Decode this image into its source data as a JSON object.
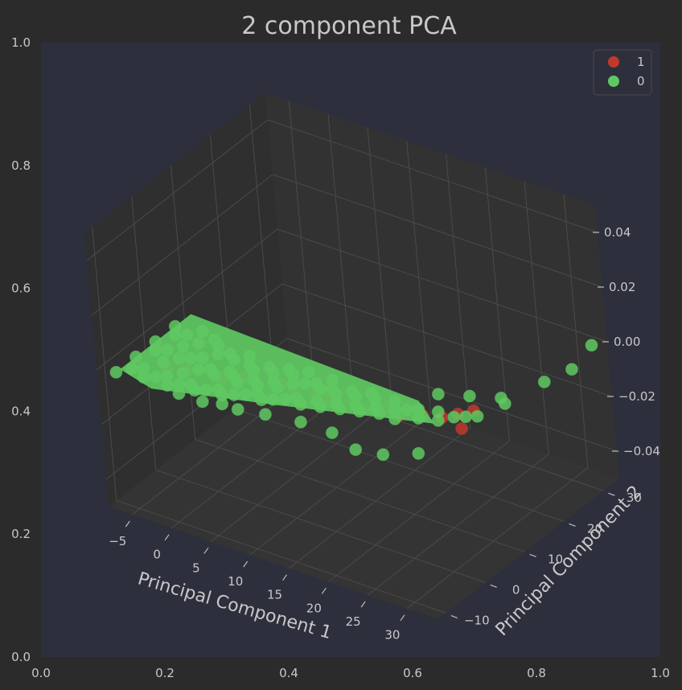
{
  "chart_data": {
    "type": "scatter",
    "title": "2 component PCA",
    "projection": "3d",
    "xlabel": "Principal Component 1",
    "ylabel": "Principal Component 2",
    "zlabel": "",
    "x_ticks": [
      "−5",
      "0",
      "5",
      "10",
      "15",
      "20",
      "25",
      "30"
    ],
    "y_ticks": [
      "−10",
      "0",
      "10",
      "20",
      "30"
    ],
    "z_ticks": [
      "−0.04",
      "−0.02",
      "0.00",
      "0.02",
      "0.04"
    ],
    "outer_axes": {
      "x_ticks": [
        "0.0",
        "0.2",
        "0.4",
        "0.6",
        "0.8",
        "1.0"
      ],
      "y_ticks": [
        "0.0",
        "0.2",
        "0.4",
        "0.6",
        "0.8",
        "1.0"
      ],
      "xlim": [
        0,
        1
      ],
      "ylim": [
        0,
        1
      ]
    },
    "xlim": [
      -8,
      34
    ],
    "ylim": [
      -12,
      34
    ],
    "zlim": [
      -0.05,
      0.05
    ],
    "legend": {
      "placement": "top-right"
    },
    "series": [
      {
        "name": "1",
        "color": "#c0392b",
        "points": [
          [
            -2,
            -6,
            0
          ],
          [
            0,
            -5,
            0
          ],
          [
            2,
            -3,
            0
          ],
          [
            4,
            -4,
            0
          ],
          [
            6,
            -2,
            0
          ],
          [
            8,
            -3,
            0
          ],
          [
            10,
            -1,
            0
          ],
          [
            12,
            -2,
            0
          ],
          [
            14,
            0,
            0
          ],
          [
            16,
            -1,
            0
          ],
          [
            18,
            1,
            0
          ],
          [
            20,
            0,
            0
          ],
          [
            22,
            2,
            0
          ],
          [
            24,
            1,
            0
          ],
          [
            26,
            3,
            0
          ],
          [
            28,
            4,
            0
          ],
          [
            30,
            8,
            0
          ],
          [
            29,
            6,
            0
          ],
          [
            31,
            3,
            0
          ]
        ]
      },
      {
        "name": "0",
        "color": "#5ec962",
        "points": [
          [
            -6,
            -11,
            0
          ],
          [
            -6,
            -6,
            0
          ],
          [
            -6,
            -1,
            0
          ],
          [
            -6,
            4,
            0
          ],
          [
            -5,
            -9,
            0
          ],
          [
            -5,
            -3,
            0
          ],
          [
            -5,
            2,
            0
          ],
          [
            -4,
            -8,
            0
          ],
          [
            -4,
            -2,
            0
          ],
          [
            -4,
            3,
            0
          ],
          [
            -3,
            -10,
            0
          ],
          [
            -3,
            -5,
            0
          ],
          [
            -3,
            0,
            0
          ],
          [
            -3,
            5,
            0
          ],
          [
            -2,
            -9,
            0
          ],
          [
            -2,
            -3,
            0
          ],
          [
            -2,
            2,
            0
          ],
          [
            -1,
            -8,
            0
          ],
          [
            -1,
            -2,
            0
          ],
          [
            -1,
            4,
            0
          ],
          [
            0,
            -10,
            0
          ],
          [
            0,
            -6,
            0
          ],
          [
            0,
            -1,
            0
          ],
          [
            0,
            3,
            0
          ],
          [
            1,
            -9,
            0
          ],
          [
            1,
            -4,
            0
          ],
          [
            1,
            1,
            0
          ],
          [
            2,
            -8,
            0
          ],
          [
            2,
            -3,
            0
          ],
          [
            2,
            2,
            0
          ],
          [
            3,
            -9,
            0
          ],
          [
            3,
            -4,
            0
          ],
          [
            3,
            1,
            0
          ],
          [
            4,
            -8,
            0
          ],
          [
            4,
            -2,
            0
          ],
          [
            4,
            3,
            0
          ],
          [
            5,
            -7,
            0
          ],
          [
            5,
            -3,
            0
          ],
          [
            5,
            1,
            0
          ],
          [
            6,
            -8,
            0
          ],
          [
            6,
            -4,
            0
          ],
          [
            6,
            0,
            0
          ],
          [
            7,
            -7,
            0
          ],
          [
            7,
            -2,
            0
          ],
          [
            7,
            2,
            0
          ],
          [
            8,
            -6,
            0
          ],
          [
            8,
            -3,
            0
          ],
          [
            8,
            1,
            0
          ],
          [
            9,
            -5,
            0
          ],
          [
            9,
            -1,
            0
          ],
          [
            9,
            3,
            0
          ],
          [
            10,
            -6,
            0
          ],
          [
            10,
            -2,
            0
          ],
          [
            10,
            2,
            0
          ],
          [
            11,
            -5,
            0
          ],
          [
            11,
            0,
            0
          ],
          [
            11,
            4,
            0
          ],
          [
            12,
            -4,
            0
          ],
          [
            12,
            1,
            0
          ],
          [
            13,
            -3,
            0
          ],
          [
            13,
            2,
            0
          ],
          [
            14,
            -4,
            0
          ],
          [
            14,
            1,
            0
          ],
          [
            14,
            4,
            0
          ],
          [
            15,
            -2,
            0
          ],
          [
            15,
            2,
            0
          ],
          [
            16,
            -3,
            0
          ],
          [
            16,
            1,
            0
          ],
          [
            17,
            -1,
            0
          ],
          [
            17,
            3,
            0
          ],
          [
            18,
            -2,
            0
          ],
          [
            18,
            2,
            0
          ],
          [
            19,
            0,
            0
          ],
          [
            19,
            4,
            0
          ],
          [
            20,
            -1,
            0
          ],
          [
            20,
            3,
            0
          ],
          [
            21,
            1,
            0
          ],
          [
            22,
            0,
            0
          ],
          [
            22,
            4,
            0
          ],
          [
            23,
            2,
            0
          ],
          [
            24,
            3,
            0
          ],
          [
            24,
            0,
            0
          ],
          [
            25,
            4,
            0
          ],
          [
            26,
            2,
            0
          ],
          [
            27,
            5,
            0
          ],
          [
            28,
            3,
            0
          ],
          [
            29,
            5,
            0
          ],
          [
            30,
            6,
            0
          ],
          [
            31,
            7,
            0
          ],
          [
            2,
            -11,
            0
          ],
          [
            5,
            -11,
            0
          ],
          [
            7,
            -10,
            0
          ],
          [
            9,
            -10,
            0
          ],
          [
            12,
            -9,
            0
          ],
          [
            16,
            -8,
            0
          ],
          [
            20,
            -8,
            0
          ],
          [
            24,
            -10,
            0
          ],
          [
            27,
            -9,
            0
          ],
          [
            30,
            -6,
            0
          ],
          [
            31,
            13,
            0
          ],
          [
            32,
            12,
            0
          ],
          [
            33,
            20,
            0
          ],
          [
            33,
            32,
            0
          ],
          [
            34,
            25,
            0
          ],
          [
            25,
            9,
            0
          ],
          [
            28,
            11,
            0
          ]
        ]
      }
    ]
  }
}
